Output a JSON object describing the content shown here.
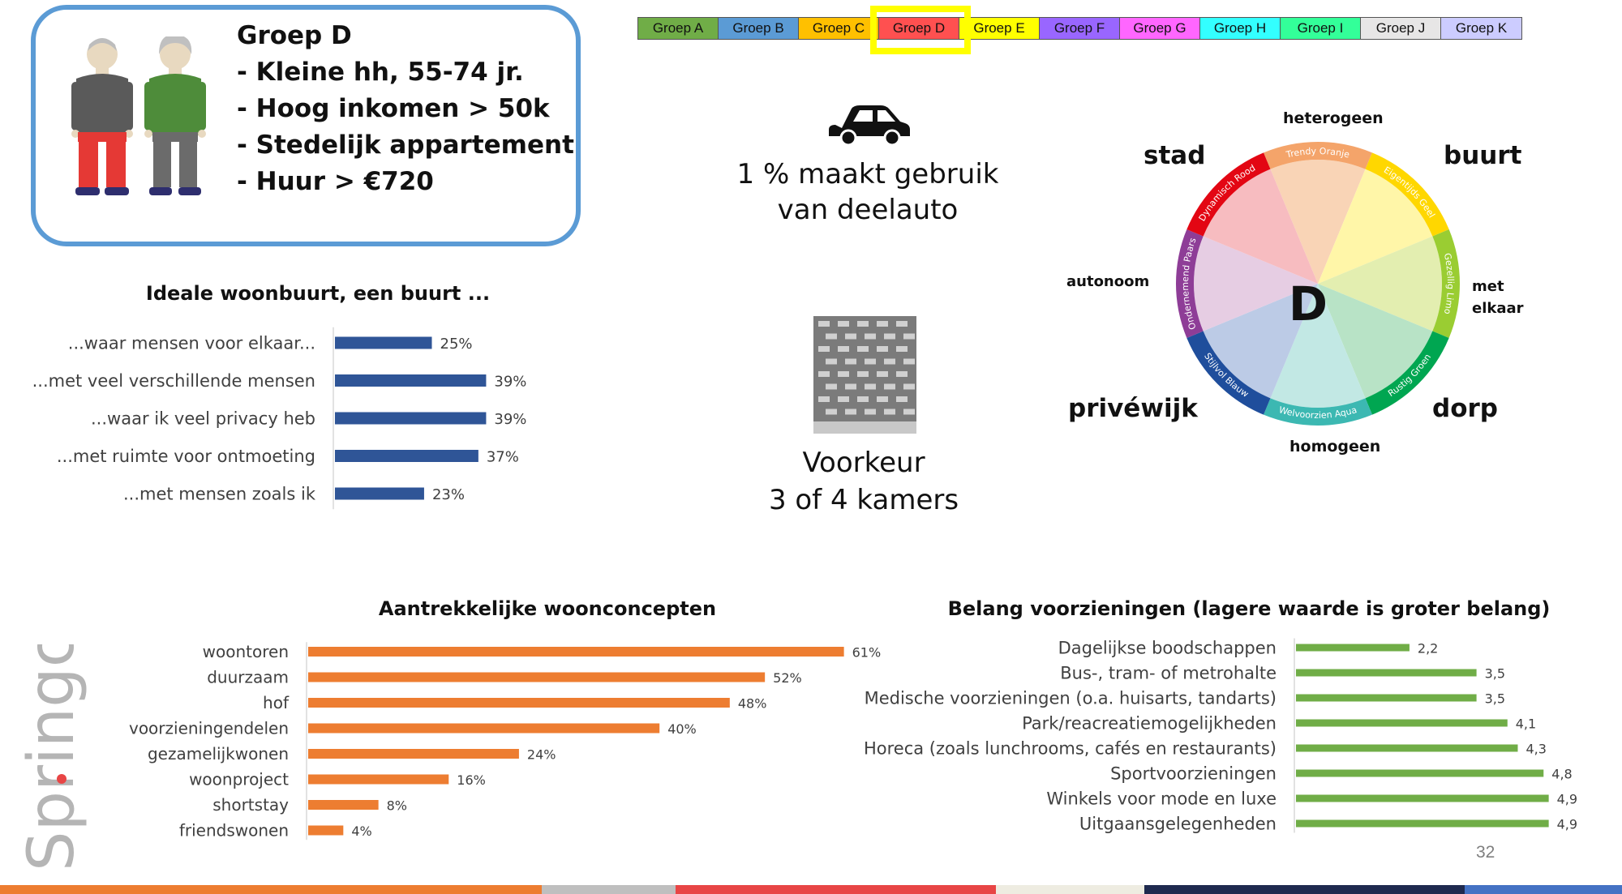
{
  "profile": {
    "title": "Groep D",
    "lines": [
      "- Kleine hh, 55-74 jr.",
      "- Hoog inkomen > 50k",
      "- Stedelijk appartement",
      "- Huur > €720"
    ]
  },
  "group_tabs": {
    "active_index": 3,
    "active_highlight_color": "#ffff00",
    "tabs": [
      {
        "label": "Groep A",
        "color": "#70ad47"
      },
      {
        "label": "Groep B",
        "color": "#5b9bd5"
      },
      {
        "label": "Groep C",
        "color": "#ffc000"
      },
      {
        "label": "Groep D",
        "color": "#ff5050"
      },
      {
        "label": "Groep E",
        "color": "#ffff00"
      },
      {
        "label": "Groep F",
        "color": "#9966ff"
      },
      {
        "label": "Groep G",
        "color": "#ff66ff"
      },
      {
        "label": "Groep H",
        "color": "#33ffff"
      },
      {
        "label": "Groep I",
        "color": "#33ff99"
      },
      {
        "label": "Groep J",
        "color": "#e7e6e6"
      },
      {
        "label": "Groep K",
        "color": "#ccccff"
      }
    ]
  },
  "car": {
    "icon": "car-icon",
    "line1": "1 % maakt gebruik",
    "line2": "van deelauto"
  },
  "building": {
    "icon": "apartment-building-icon",
    "line1": "Voorkeur",
    "line2": "3 of 4 kamers"
  },
  "wheel": {
    "center_letter": "D",
    "labels": {
      "top": "heterogeen",
      "bottom": "homogeen",
      "top_left": "stad",
      "top_right": "buurt",
      "left": "autonoom",
      "right_line1": "met",
      "right_line2": "elkaar",
      "bottom_left": "privéwijk",
      "bottom_right": "dorp"
    },
    "segments": [
      {
        "name": "Trendy Oranje",
        "color": "#f4a46a",
        "inner": "#f9d4b6"
      },
      {
        "name": "Eigentijds Geel",
        "color": "#ffd700",
        "inner": "#fff6a8"
      },
      {
        "name": "Gezellig Limo",
        "color": "#9acd32",
        "inner": "#e3eeb0"
      },
      {
        "name": "Rustig Groen",
        "color": "#00a651",
        "inner": "#b8e3c6"
      },
      {
        "name": "Welvoorzien Aqua",
        "color": "#3cb8b2",
        "inner": "#c2e8e4"
      },
      {
        "name": "Stijlvol Blauw",
        "color": "#1f4e9c",
        "inner": "#bccbe6"
      },
      {
        "name": "Ondernemend Paars",
        "color": "#8e3d97",
        "inner": "#e6cde3"
      },
      {
        "name": "Dynamisch Rood",
        "color": "#e30613",
        "inner": "#f7bcc0"
      }
    ]
  },
  "chart_data": [
    {
      "type": "bar",
      "orientation": "horizontal",
      "title": "Ideale woonbuurt, een buurt ...",
      "categories": [
        "...waar mensen voor elkaar...",
        "...met veel verschillende mensen",
        "...waar ik veel privacy heb",
        "...met ruimte voor ontmoeting",
        "...met mensen zoals ik"
      ],
      "values": [
        25,
        39,
        39,
        37,
        23
      ],
      "value_labels": [
        "25%",
        "39%",
        "39%",
        "37%",
        "23%"
      ],
      "unit": "%",
      "color": "#2f5597"
    },
    {
      "type": "bar",
      "orientation": "horizontal",
      "title": "Aantrekkelijke woonconcepten",
      "categories": [
        "woontoren",
        "duurzaam",
        "hof",
        "voorzieningendelen",
        "gezamelijkwonen",
        "woonproject",
        "shortstay",
        "friendswonen"
      ],
      "values": [
        61,
        52,
        48,
        40,
        24,
        16,
        8,
        4
      ],
      "value_labels": [
        "61%",
        "52%",
        "48%",
        "40%",
        "24%",
        "16%",
        "8%",
        "4%"
      ],
      "unit": "%",
      "color": "#ed7d31"
    },
    {
      "type": "bar",
      "orientation": "horizontal",
      "title": "Belang voorzieningen (lagere waarde is groter belang)",
      "categories": [
        "Dagelijkse boodschappen",
        "Bus-, tram- of metrohalte",
        "Medische voorzieningen (o.a. huisarts, tandarts)",
        "Park/reacreatiemogelijkheden",
        "Horeca (zoals lunchrooms, cafés en restaurants)",
        "Sportvoorzieningen",
        "Winkels voor mode en luxe",
        "Uitgaansgelegenheden"
      ],
      "values": [
        2.2,
        3.5,
        3.5,
        4.1,
        4.3,
        4.8,
        4.9,
        4.9
      ],
      "value_labels": [
        "2,2",
        "3,5",
        "3,5",
        "4,1",
        "4,3",
        "4,8",
        "4,9",
        "4,9"
      ],
      "color": "#70ad47"
    }
  ],
  "page_number": "32",
  "logo_text": "Springco",
  "bottom_band_colors": [
    "#ed7d31",
    "#bfbfbf",
    "#e84545",
    "#eeece1",
    "#1f2a4f",
    "#4472c4"
  ]
}
